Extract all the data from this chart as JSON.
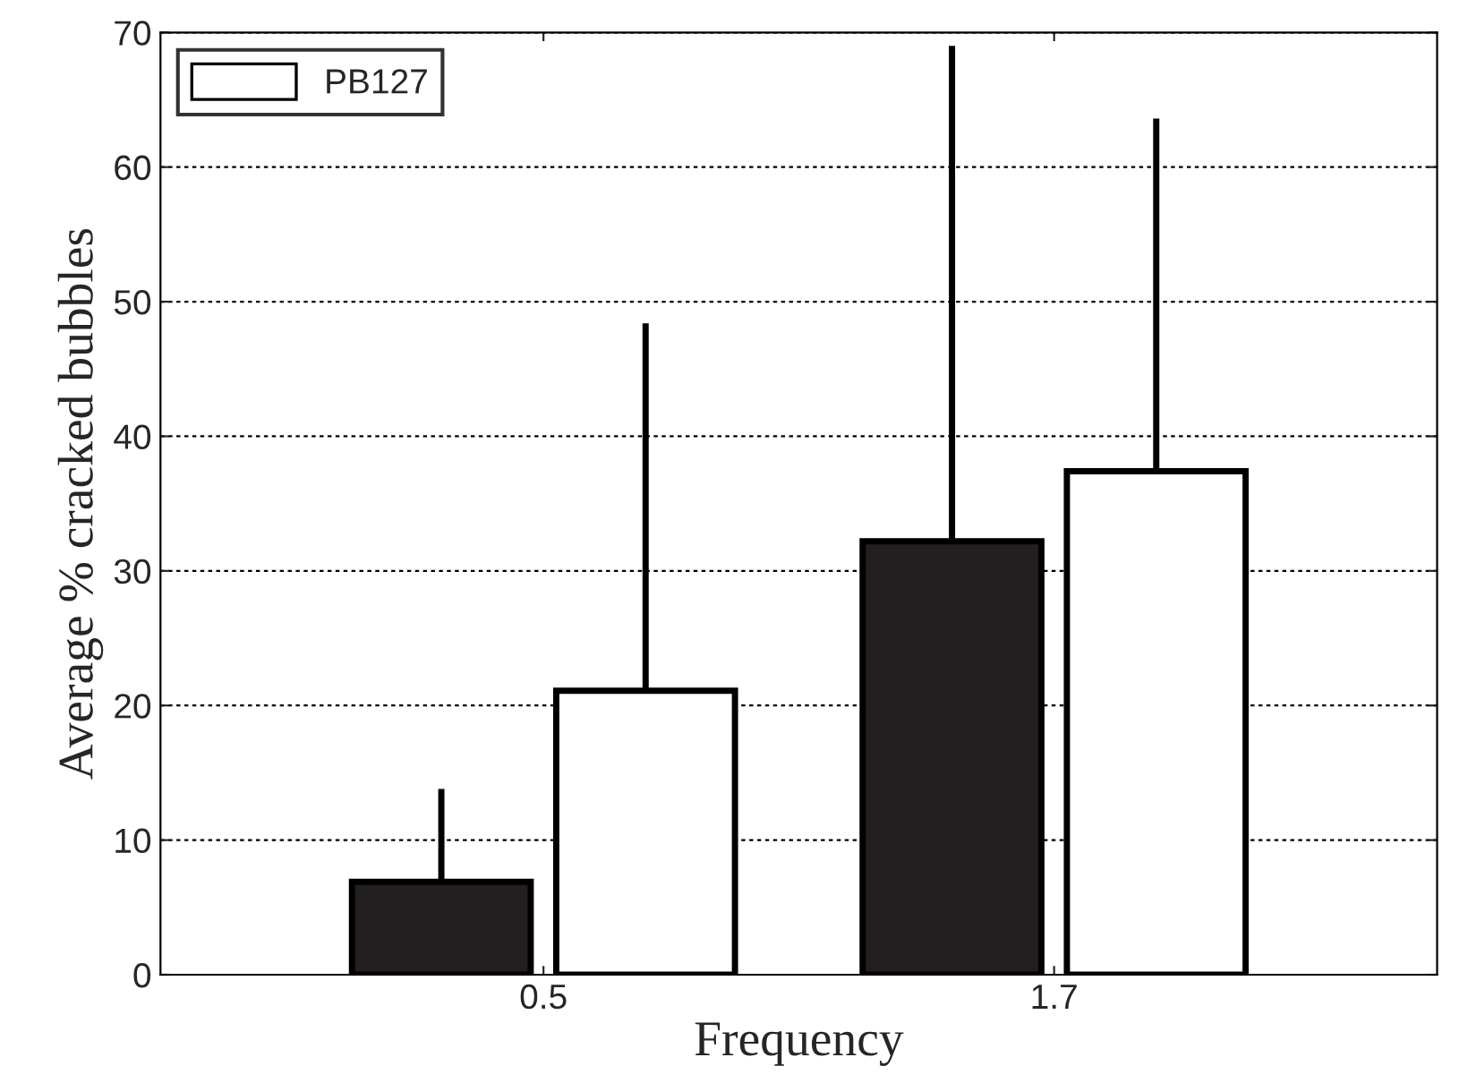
{
  "chart_data": {
    "type": "bar",
    "xlabel": "Frequency",
    "ylabel": "Average % cracked bubbles",
    "categories": [
      "0.5",
      "1.7"
    ],
    "series": [
      {
        "color": "#231f20",
        "values": [
          6.9,
          32.2
        ],
        "errors": [
          [
            6.9,
            13.8
          ],
          [
            32.2,
            69.0
          ]
        ]
      },
      {
        "name": "PB127",
        "color": "#ffffff",
        "values": [
          21.1,
          37.4
        ],
        "errors": [
          [
            21.1,
            48.4
          ],
          [
            37.4,
            63.6
          ]
        ]
      }
    ],
    "ylim": [
      0,
      70
    ],
    "yticks": [
      0,
      10,
      20,
      30,
      40,
      50,
      60,
      70
    ],
    "grid": "y",
    "legend": "top left"
  }
}
